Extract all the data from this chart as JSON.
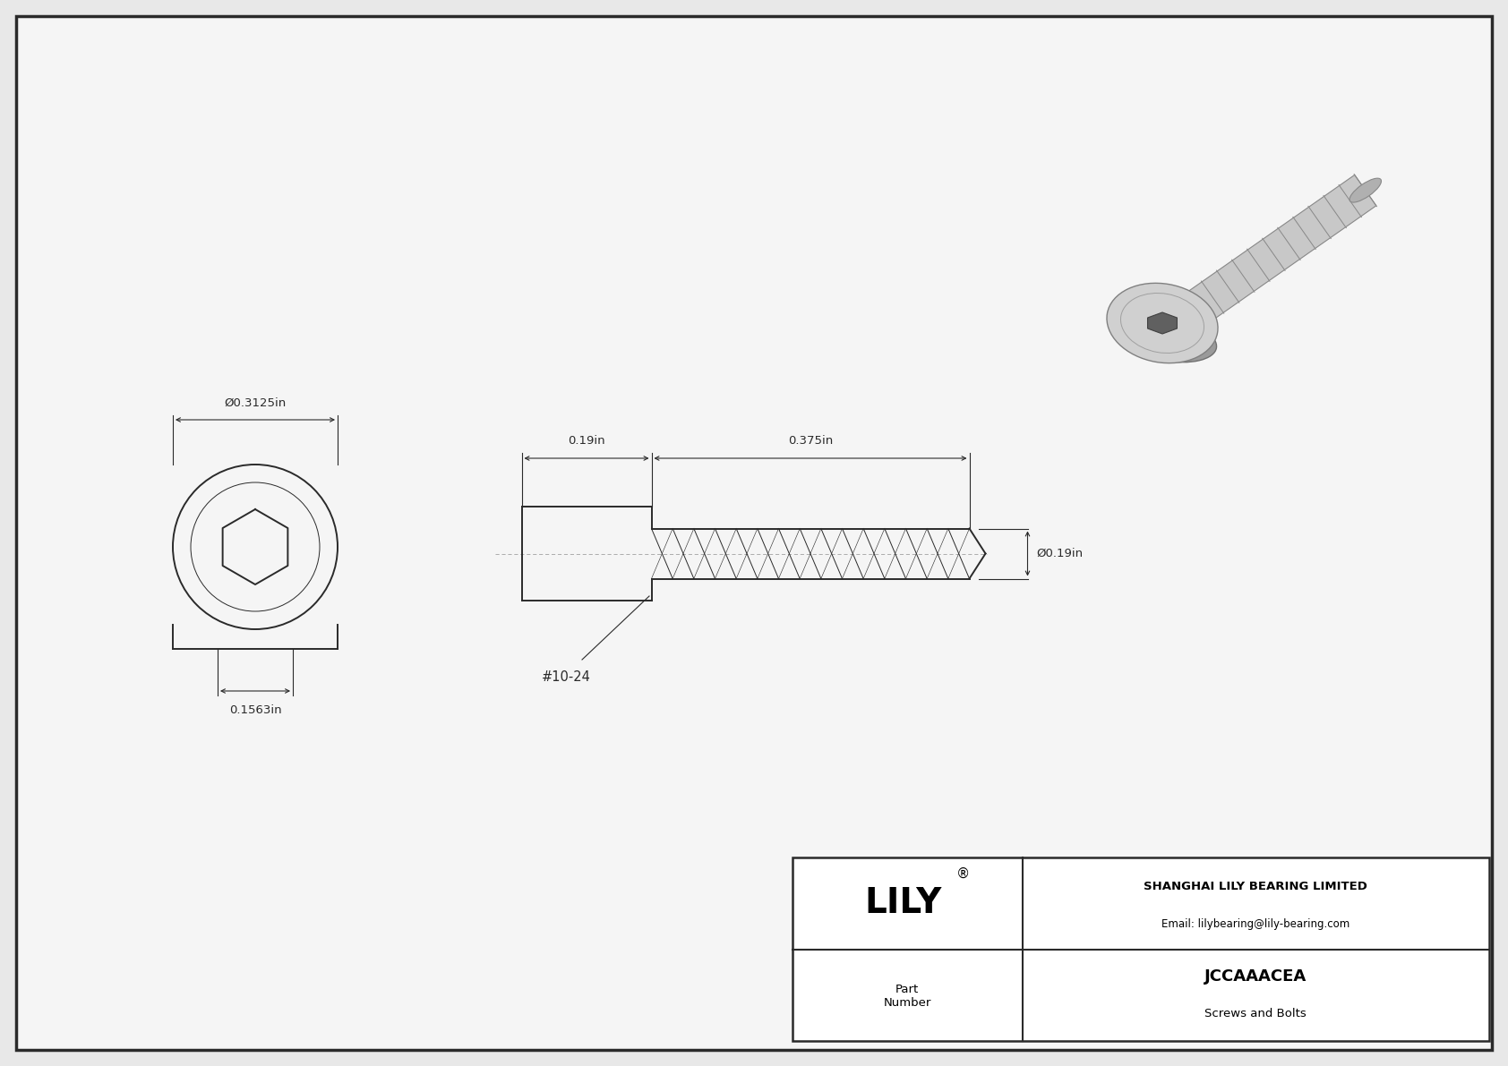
{
  "bg_color": "#e8e8e8",
  "drawing_bg": "#f5f5f5",
  "border_color": "#2a2a2a",
  "line_color": "#2a2a2a",
  "title": "JCCAAACEA",
  "subtitle": "Screws and Bolts",
  "company": "SHANGHAI LILY BEARING LIMITED",
  "email": "Email: lilybearing@lily-bearing.com",
  "part_number_label": "Part\nNumber",
  "dim_outer_dia": "Ø0.3125in",
  "dim_hex_width": "0.1563in",
  "dim_head_length": "0.19in",
  "dim_thread_length": "0.375in",
  "dim_shank_dia": "Ø0.19in",
  "thread_label": "#10-24",
  "lw_main": 1.4,
  "lw_thin": 0.7,
  "lw_dim": 0.8
}
